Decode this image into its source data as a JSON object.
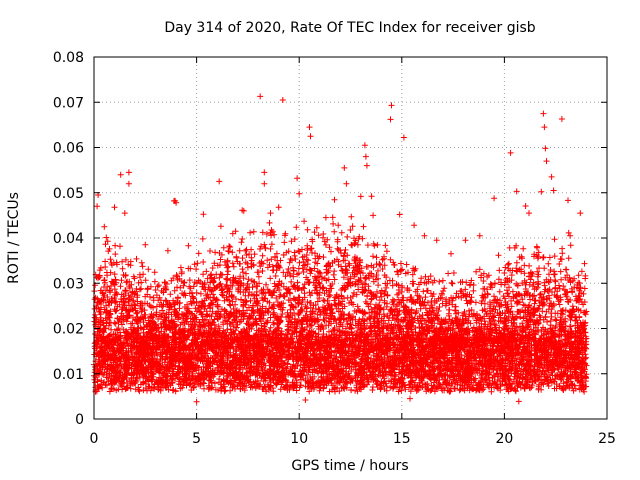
{
  "chart_data": {
    "type": "scatter",
    "title": "Day 314 of 2020, Rate Of TEC Index for receiver gisb",
    "xlabel": "GPS time / hours",
    "ylabel": "ROTI / TECUs",
    "xlim": [
      0,
      25
    ],
    "ylim": [
      0,
      0.08
    ],
    "xticks": [
      0,
      5,
      10,
      15,
      20,
      25
    ],
    "yticks": [
      0,
      0.01,
      0.02,
      0.03,
      0.04,
      0.05,
      0.06,
      0.07,
      0.08
    ],
    "xtick_labels": [
      "0",
      "5",
      "10",
      "15",
      "20",
      "25"
    ],
    "ytick_labels": [
      "0",
      "0.01",
      "0.02",
      "0.03",
      "0.04",
      "0.05",
      "0.06",
      "0.07",
      "0.08"
    ],
    "grid": true,
    "marker": "+",
    "color": "#ff0000",
    "data_extent_hours": [
      0,
      24
    ],
    "series": [
      {
        "name": "ROTI",
        "note": "dense band of points mostly between 0.005 and 0.025 TECU/min across 0-24 h, with peaks listed below",
        "points": [
          [
            8.1,
            0.0713
          ],
          [
            9.2,
            0.0705
          ],
          [
            10.5,
            0.0645
          ],
          [
            10.55,
            0.0625
          ],
          [
            14.5,
            0.0693
          ],
          [
            14.45,
            0.0662
          ],
          [
            15.1,
            0.0622
          ],
          [
            13.2,
            0.0605
          ],
          [
            13.25,
            0.058
          ],
          [
            13.3,
            0.056
          ],
          [
            21.9,
            0.0675
          ],
          [
            21.95,
            0.0645
          ],
          [
            22.0,
            0.0598
          ],
          [
            22.05,
            0.057
          ],
          [
            22.8,
            0.0663
          ],
          [
            20.3,
            0.0588
          ],
          [
            1.3,
            0.054
          ],
          [
            1.7,
            0.0545
          ],
          [
            1.7,
            0.052
          ],
          [
            6.1,
            0.0525
          ],
          [
            8.3,
            0.0545
          ],
          [
            8.3,
            0.052
          ],
          [
            9.9,
            0.0532
          ],
          [
            10.0,
            0.0498
          ],
          [
            12.2,
            0.0555
          ],
          [
            12.3,
            0.052
          ],
          [
            13.0,
            0.0492
          ],
          [
            0.2,
            0.0495
          ],
          [
            0.15,
            0.047
          ],
          [
            3.9,
            0.0482
          ],
          [
            4.0,
            0.0478
          ],
          [
            3.95,
            0.0482
          ],
          [
            22.3,
            0.0535
          ],
          [
            22.4,
            0.0505
          ],
          [
            21.8,
            0.0502
          ],
          [
            23.1,
            0.0483
          ],
          [
            20.6,
            0.0503
          ],
          [
            19.5,
            0.0488
          ],
          [
            17.4,
            0.0365
          ],
          [
            0.5,
            0.0425
          ],
          [
            1.0,
            0.0468
          ],
          [
            1.5,
            0.0455
          ],
          [
            2.5,
            0.0385
          ],
          [
            3.6,
            0.0372
          ],
          [
            4.6,
            0.0383
          ],
          [
            5.3,
            0.0398
          ],
          [
            6.9,
            0.0415
          ],
          [
            7.3,
            0.046
          ],
          [
            8.6,
            0.0455
          ],
          [
            9.0,
            0.0468
          ],
          [
            11.3,
            0.0445
          ],
          [
            11.9,
            0.0428
          ],
          [
            12.6,
            0.0426
          ],
          [
            13.6,
            0.045
          ],
          [
            14.9,
            0.0452
          ],
          [
            15.6,
            0.0428
          ],
          [
            16.1,
            0.0405
          ],
          [
            16.7,
            0.0395
          ],
          [
            18.1,
            0.0395
          ],
          [
            18.8,
            0.0405
          ],
          [
            21.2,
            0.0455
          ],
          [
            23.2,
            0.0405
          ],
          [
            23.7,
            0.0455
          ],
          [
            2.8,
            0.0232
          ],
          [
            7.8,
            0.0235
          ],
          [
            12.8,
            0.0275
          ],
          [
            17.9,
            0.0268
          ],
          [
            5.0,
            0.0038
          ],
          [
            10.3,
            0.0042
          ],
          [
            15.4,
            0.0045
          ],
          [
            20.7,
            0.0039
          ],
          [
            0.05,
            0.0115
          ],
          [
            24.0,
            0.0118
          ]
        ]
      }
    ]
  }
}
